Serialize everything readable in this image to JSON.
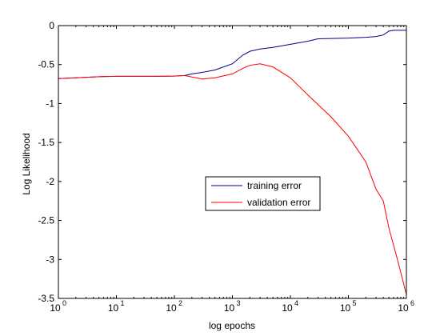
{
  "chart_data": {
    "type": "line",
    "title": "",
    "xlabel": "log epochs",
    "ylabel": "Log Likelihood",
    "xscale": "log",
    "xlim": [
      1,
      1000000
    ],
    "ylim": [
      -3.5,
      0
    ],
    "grid": false,
    "legend_placement": "center-right",
    "x_ticks": [
      {
        "value": 1,
        "base": "10",
        "exp": "0"
      },
      {
        "value": 10,
        "base": "10",
        "exp": "1"
      },
      {
        "value": 100,
        "base": "10",
        "exp": "2"
      },
      {
        "value": 1000,
        "base": "10",
        "exp": "3"
      },
      {
        "value": 10000,
        "base": "10",
        "exp": "4"
      },
      {
        "value": 100000,
        "base": "10",
        "exp": "5"
      },
      {
        "value": 1000000,
        "base": "10",
        "exp": "6"
      }
    ],
    "y_ticks": [
      {
        "value": 0,
        "label": "0"
      },
      {
        "value": -0.5,
        "label": "-0.5"
      },
      {
        "value": -1,
        "label": "-1"
      },
      {
        "value": -1.5,
        "label": "-1.5"
      },
      {
        "value": -2,
        "label": "-2"
      },
      {
        "value": -2.5,
        "label": "-2.5"
      },
      {
        "value": -3,
        "label": "-3"
      },
      {
        "value": -3.5,
        "label": "-3.5"
      }
    ],
    "series": [
      {
        "name": "training error",
        "color": "#00008b",
        "points": [
          [
            1,
            -0.68
          ],
          [
            2,
            -0.67
          ],
          [
            5,
            -0.655
          ],
          [
            10,
            -0.65
          ],
          [
            50,
            -0.65
          ],
          [
            100,
            -0.648
          ],
          [
            150,
            -0.64
          ],
          [
            200,
            -0.62
          ],
          [
            300,
            -0.6
          ],
          [
            500,
            -0.57
          ],
          [
            1000,
            -0.49
          ],
          [
            1500,
            -0.38
          ],
          [
            2000,
            -0.33
          ],
          [
            3000,
            -0.3
          ],
          [
            5000,
            -0.28
          ],
          [
            10000,
            -0.24
          ],
          [
            20000,
            -0.2
          ],
          [
            30000,
            -0.17
          ],
          [
            50000,
            -0.165
          ],
          [
            100000,
            -0.16
          ],
          [
            200000,
            -0.15
          ],
          [
            300000,
            -0.14
          ],
          [
            400000,
            -0.12
          ],
          [
            500000,
            -0.07
          ],
          [
            600000,
            -0.06
          ],
          [
            1000000,
            -0.06
          ]
        ]
      },
      {
        "name": "validation error",
        "color": "#ff0000",
        "points": [
          [
            1,
            -0.68
          ],
          [
            2,
            -0.67
          ],
          [
            5,
            -0.655
          ],
          [
            10,
            -0.65
          ],
          [
            50,
            -0.65
          ],
          [
            100,
            -0.648
          ],
          [
            150,
            -0.64
          ],
          [
            200,
            -0.66
          ],
          [
            300,
            -0.685
          ],
          [
            500,
            -0.67
          ],
          [
            1000,
            -0.62
          ],
          [
            1500,
            -0.55
          ],
          [
            2000,
            -0.51
          ],
          [
            3000,
            -0.49
          ],
          [
            5000,
            -0.53
          ],
          [
            10000,
            -0.67
          ],
          [
            20000,
            -0.89
          ],
          [
            50000,
            -1.17
          ],
          [
            100000,
            -1.42
          ],
          [
            200000,
            -1.75
          ],
          [
            300000,
            -2.1
          ],
          [
            400000,
            -2.25
          ],
          [
            500000,
            -2.6
          ],
          [
            700000,
            -3.0
          ],
          [
            1000000,
            -3.45
          ]
        ]
      }
    ]
  }
}
